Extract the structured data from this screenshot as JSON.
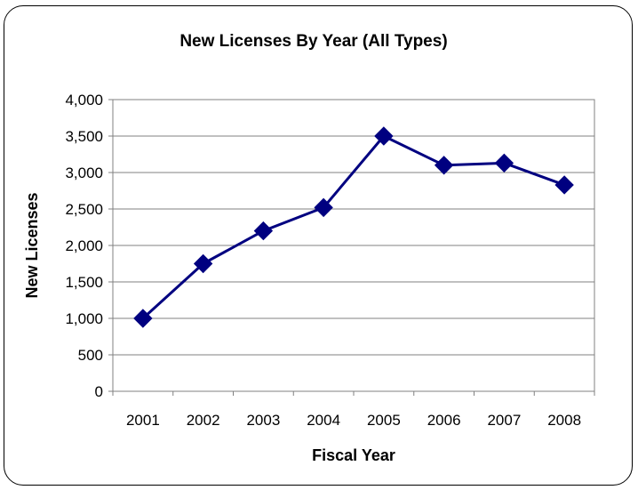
{
  "chart_data": {
    "type": "line",
    "title": "New Licenses By Year (All Types)",
    "xlabel": "Fiscal Year",
    "ylabel": "New Licenses",
    "categories": [
      "2001",
      "2002",
      "2003",
      "2004",
      "2005",
      "2006",
      "2007",
      "2008"
    ],
    "series": [
      {
        "values": [
          1000,
          1750,
          2200,
          2520,
          3500,
          3100,
          3130,
          2830
        ],
        "color": "#000080",
        "marker": "diamond"
      }
    ],
    "ylim": [
      0,
      4000
    ],
    "yticks": [
      0,
      500,
      1000,
      1500,
      2000,
      2500,
      3000,
      3500,
      4000
    ],
    "ytick_labels": [
      "0",
      "500",
      "1,000",
      "1,500",
      "2,000",
      "2,500",
      "3,000",
      "3,500",
      "4,000"
    ],
    "grid": true,
    "legend": "none"
  }
}
